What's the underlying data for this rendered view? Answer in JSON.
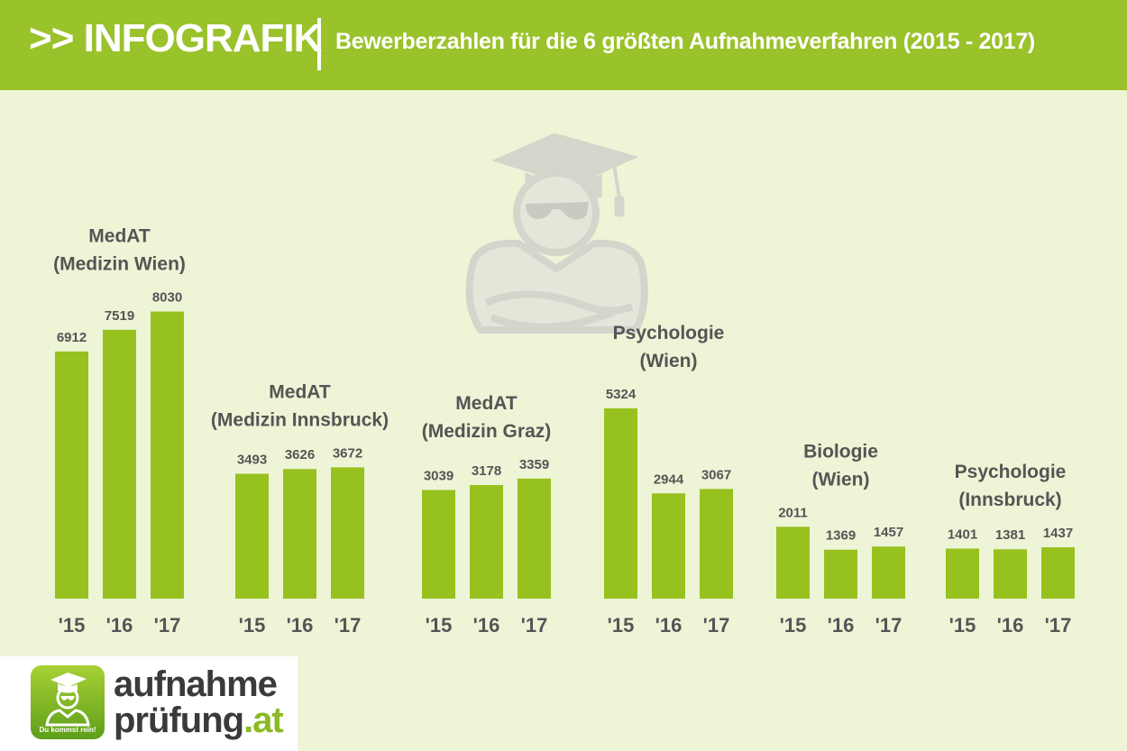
{
  "header": {
    "prefix": ">> INFOGRAFIK",
    "subtitle": "Bewerberzahlen für die 6 größten Aufnahmeverfahren (2015 - 2017)"
  },
  "colors": {
    "header_bg": "#9ac22b",
    "page_bg": "#eef4d6",
    "bar": "#97c11f",
    "text": "#555555",
    "mascot": "#cfd3c7"
  },
  "chart_data": {
    "type": "bar",
    "title": "Bewerberzahlen für die 6 größten Aufnahmeverfahren (2015 - 2017)",
    "categories": [
      "'15",
      "'16",
      "'17"
    ],
    "groups": [
      {
        "label_lines": [
          "MedAT",
          "(Medizin Wien)"
        ],
        "values": [
          6912,
          7519,
          8030
        ]
      },
      {
        "label_lines": [
          "MedAT",
          "(Medizin Innsbruck)"
        ],
        "values": [
          3493,
          3626,
          3672
        ]
      },
      {
        "label_lines": [
          "MedAT",
          "(Medizin Graz)"
        ],
        "values": [
          3039,
          3178,
          3359
        ]
      },
      {
        "label_lines": [
          "Psychologie",
          "(Wien)"
        ],
        "values": [
          5324,
          2944,
          3067
        ]
      },
      {
        "label_lines": [
          "Biologie",
          "(Wien)"
        ],
        "values": [
          2011,
          1369,
          1457
        ]
      },
      {
        "label_lines": [
          "Psychologie",
          "(Innsbruck)"
        ],
        "values": [
          1401,
          1381,
          1437
        ]
      }
    ],
    "grid": false,
    "legend": "none"
  },
  "mascot": {
    "icon": "graduate-student-icon"
  },
  "logo": {
    "icon": "graduate-mascot-logo-icon",
    "word_1": "aufnahme",
    "word_2": "prüfung",
    "word_2_tld": ".at",
    "badge_text": "Du kommst rein!"
  }
}
